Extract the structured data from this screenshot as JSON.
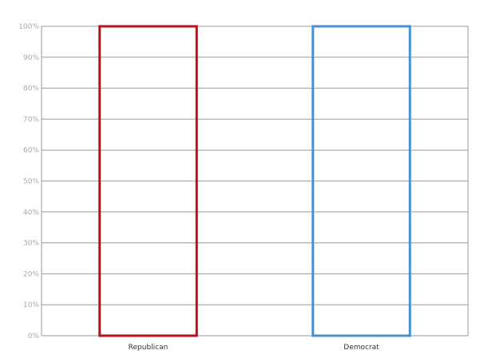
{
  "chart_data": {
    "type": "bar",
    "categories": [
      "Republican",
      "Democrat"
    ],
    "values": [
      100,
      100
    ],
    "colors": [
      "#b5121b",
      "#4a8fd0"
    ],
    "fill": "none",
    "ylim": [
      0,
      100
    ],
    "yticks": [
      "0%",
      "10%",
      "20%",
      "30%",
      "40%",
      "50%",
      "60%",
      "70%",
      "80%",
      "90%",
      "100%"
    ],
    "grid": true,
    "title": "",
    "xlabel": "",
    "ylabel": ""
  }
}
